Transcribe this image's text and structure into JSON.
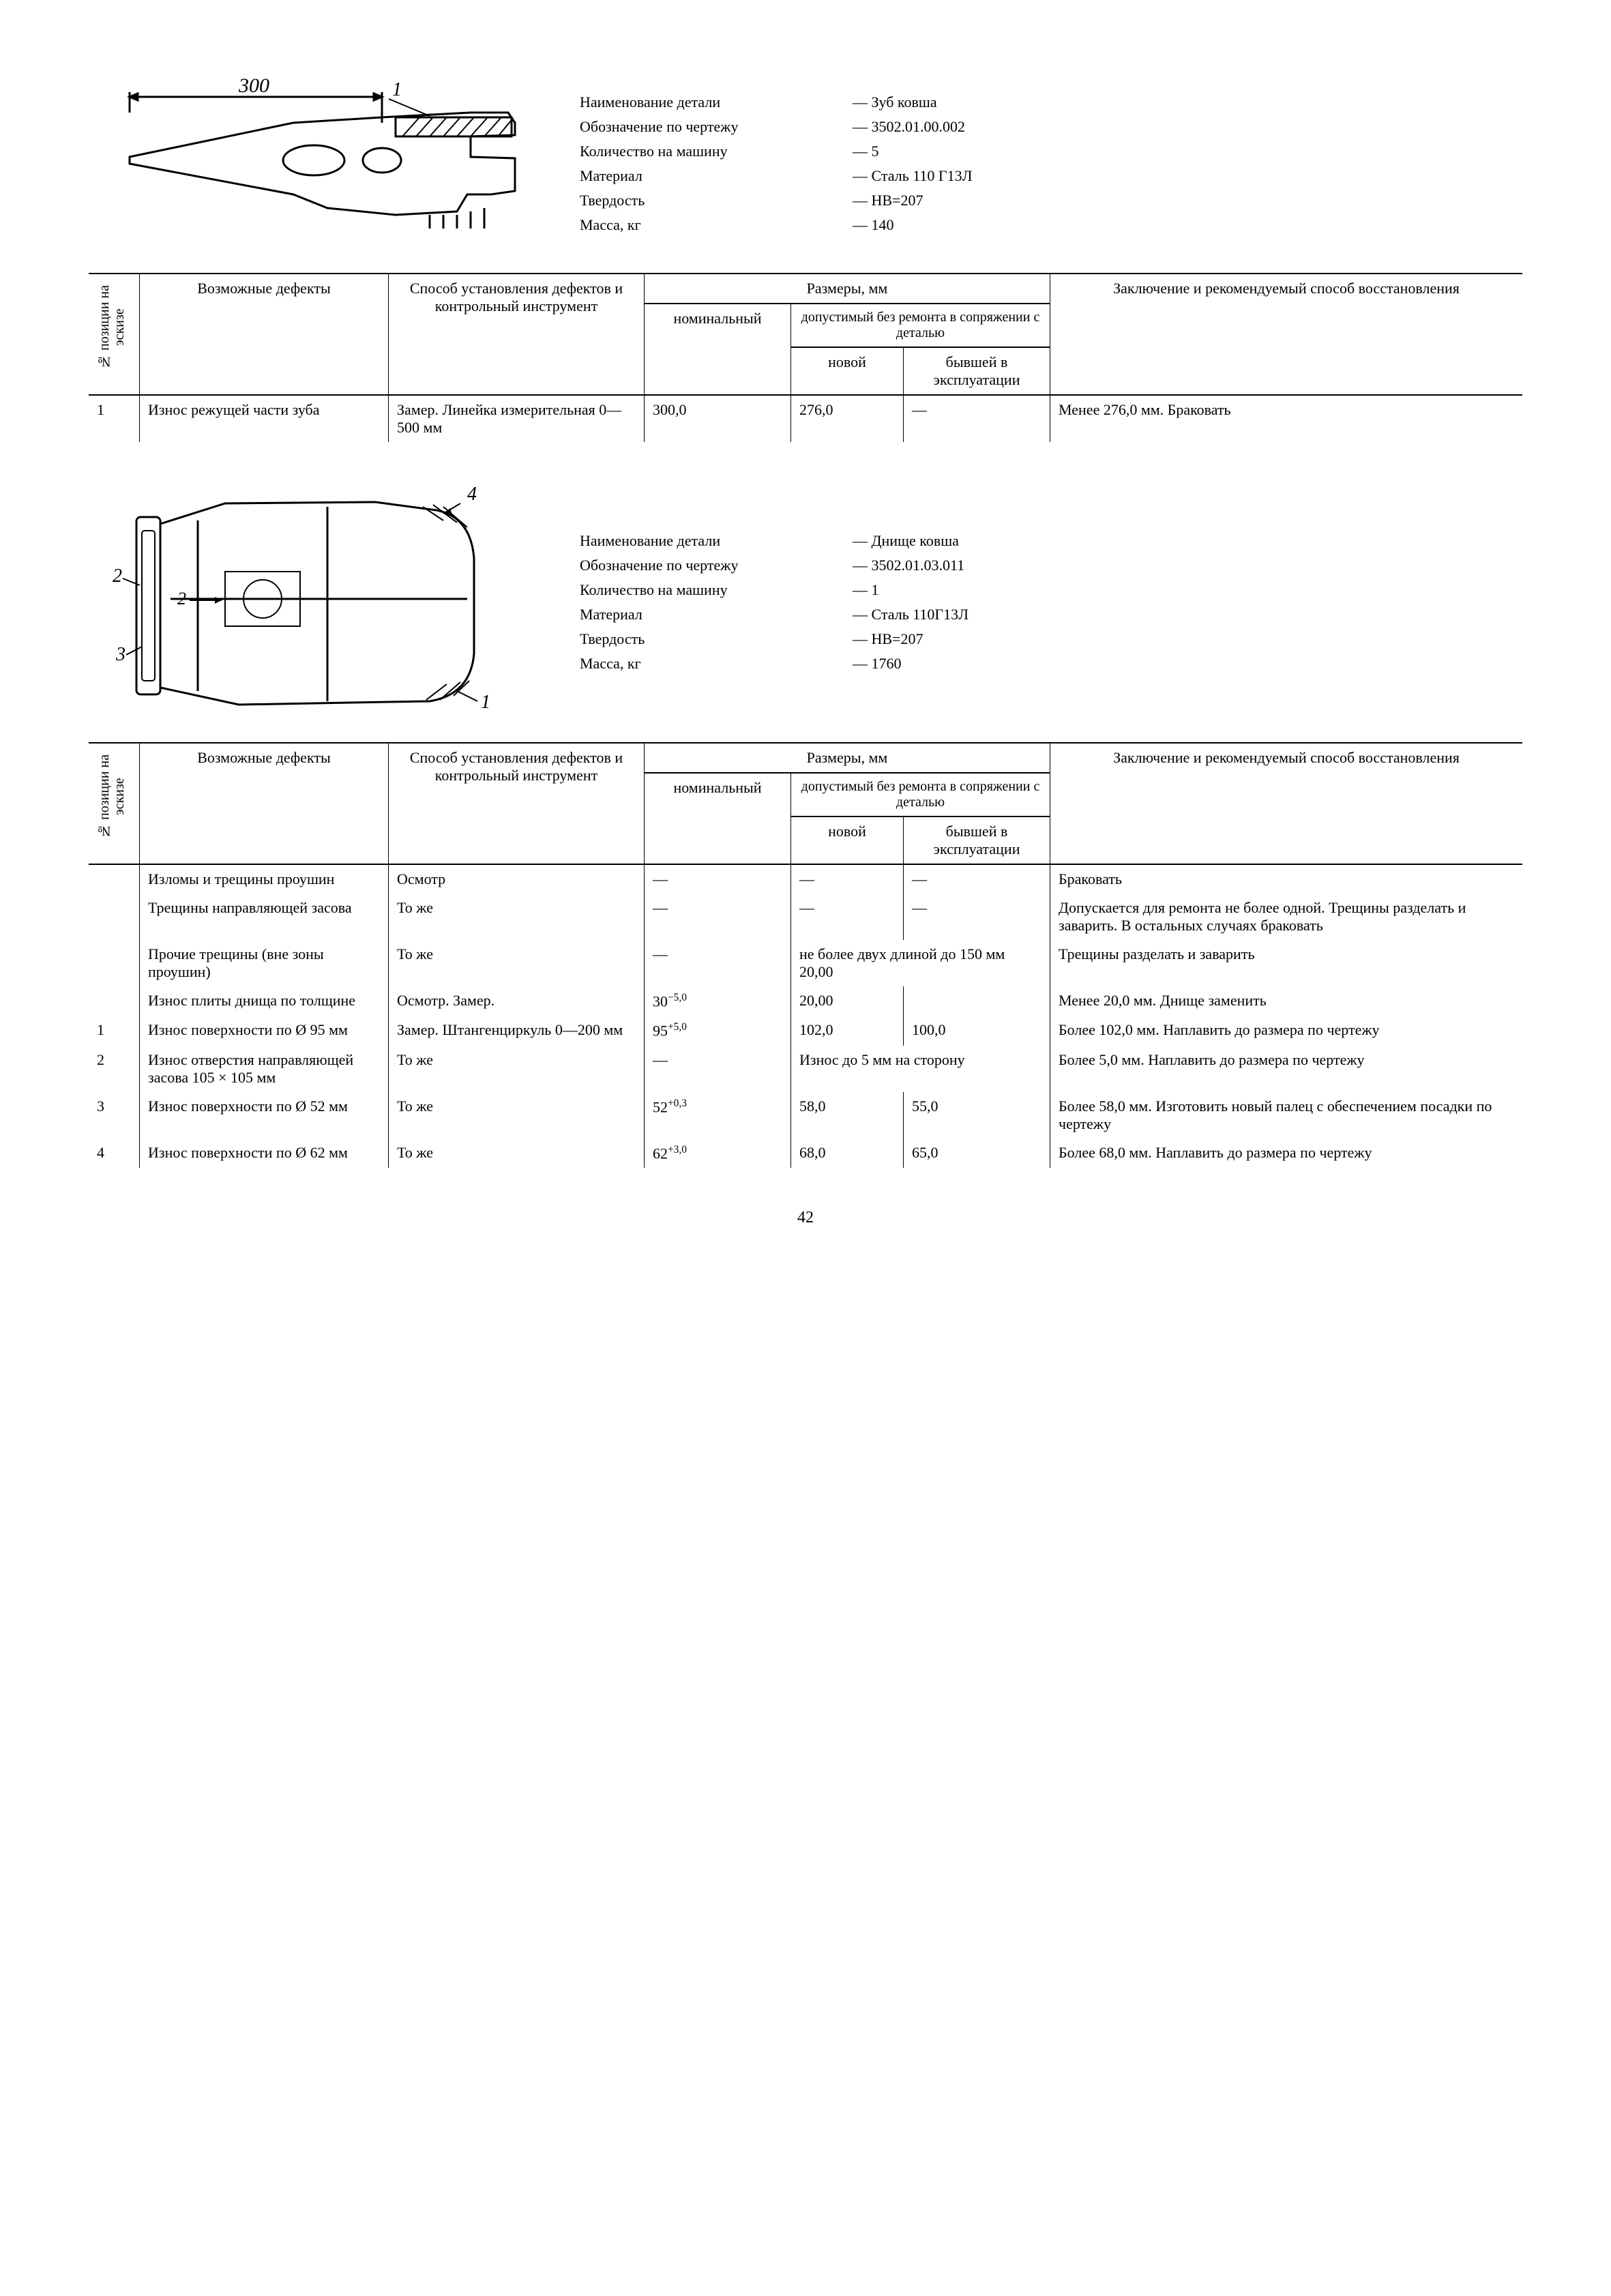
{
  "page_number": "42",
  "colors": {
    "text": "#000000",
    "bg": "#ffffff",
    "line": "#000000"
  },
  "section1": {
    "sketch": {
      "dimension_label": "300",
      "callout_1": "1"
    },
    "meta": [
      {
        "label": "Наименование детали",
        "value": "Зуб ковша"
      },
      {
        "label": "Обозначение по чертежу",
        "value": "3502.01.00.002"
      },
      {
        "label": "Количество на машину",
        "value": "5"
      },
      {
        "label": "Материал",
        "value": "Сталь 110 Г13Л"
      },
      {
        "label": "Твердость",
        "value": "HB=207"
      },
      {
        "label": "Масса, кг",
        "value": "140"
      }
    ],
    "headers": {
      "pos": "№ позиции на эскизе",
      "defect": "Возможные дефекты",
      "method": "Способ установления дефектов и контрольный инструмент",
      "sizes": "Размеры, мм",
      "nominal": "номинальный",
      "tolerance": "допустимый без ремонта в сопряжении с деталью",
      "new": "новой",
      "used": "бывшей в эксплуатации",
      "conclusion": "Заключение и рекомендуемый способ восстановления"
    },
    "rows": [
      {
        "pos": "1",
        "defect": "Износ режущей части зуба",
        "method": "Замер. Линейка измерительная 0—500 мм",
        "nominal": "300,0",
        "new": "276,0",
        "used": "—",
        "conclusion": "Менее 276,0 мм. Браковать"
      }
    ]
  },
  "section2": {
    "sketch": {
      "callouts": [
        "1",
        "2",
        "3",
        "4"
      ],
      "c2b": "2"
    },
    "meta": [
      {
        "label": "Наименование детали",
        "value": "Днище ковша"
      },
      {
        "label": "Обозначение по чертежу",
        "value": "3502.01.03.011"
      },
      {
        "label": "Количество на машину",
        "value": "1"
      },
      {
        "label": "Материал",
        "value": "Сталь 110Г13Л"
      },
      {
        "label": "Твердость",
        "value": "HB=207"
      },
      {
        "label": "Масса, кг",
        "value": "1760"
      }
    ],
    "rows": [
      {
        "pos": "",
        "defect": "Изломы и трещины проушин",
        "method": "Осмотр",
        "nominal": "—",
        "new": "—",
        "used": "—",
        "conclusion": "Браковать"
      },
      {
        "pos": "",
        "defect": "Трещины направляющей засова",
        "method": "То же",
        "nominal": "—",
        "new": "—",
        "used": "—",
        "conclusion": "Допускается для ремонта не более одной. Трещины разделать и заварить. В остальных случаях браковать"
      },
      {
        "pos": "",
        "defect": "Прочие трещины (вне зоны проушин)",
        "method": "То же",
        "nominal": "—",
        "merged_new_used": "не более двух длиной до 150 мм 20,00",
        "conclusion": "Трещины разделать и заварить"
      },
      {
        "pos": "",
        "defect": "Износ плиты днища по толщине",
        "method": "Осмотр. Замер.",
        "nominal_html": "30<sup>−5,0</sup>",
        "new": "20,00",
        "used": "",
        "conclusion": "Менее 20,0 мм. Днище заменить"
      },
      {
        "pos": "1",
        "defect": "Износ поверхности по Ø 95 мм",
        "method": "Замер. Штангенциркуль 0—200 мм",
        "nominal_html": "95<sup>+5,0</sup>",
        "new": "102,0",
        "used": "100,0",
        "conclusion": "Более 102,0 мм. Наплавить до размера по чертежу"
      },
      {
        "pos": "2",
        "defect": "Износ отверстия направляющей засова 105 × 105 мм",
        "method": "То же",
        "nominal": "—",
        "merged_new_used": "Износ до 5 мм на сторону",
        "conclusion": "Более 5,0 мм. Наплавить до размера по чертежу"
      },
      {
        "pos": "3",
        "defect": "Износ поверхности по Ø 52 мм",
        "method": "То же",
        "nominal_html": "52<sup>+0,3</sup>",
        "new": "58,0",
        "used": "55,0",
        "conclusion": "Более 58,0 мм. Изготовить новый палец с обеспечением посадки по чертежу"
      },
      {
        "pos": "4",
        "defect": "Износ поверхности по Ø 62 мм",
        "method": "То же",
        "nominal_html": "62<sup>+3,0</sup>",
        "new": "68,0",
        "used": "65,0",
        "conclusion": "Более 68,0 мм. Наплавить до размера по чертежу"
      }
    ]
  }
}
